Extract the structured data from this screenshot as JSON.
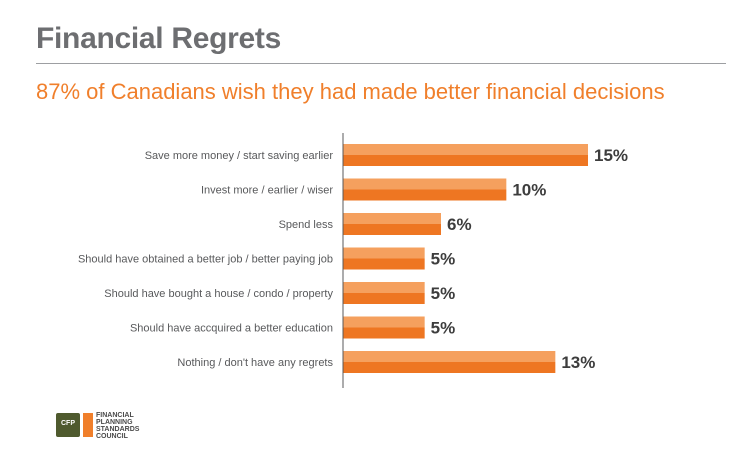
{
  "header": {
    "title": "Financial Regrets",
    "subtitle": "87% of Canadians wish they had made better financial decisions"
  },
  "footer": {
    "logo_lines": [
      "FINANCIAL",
      "PLANNING",
      "STANDARDS",
      "COUNCIL"
    ],
    "logo_mark_text": "CFP"
  },
  "colors": {
    "bar_light": "#f5a05e",
    "bar_dark": "#ee7622",
    "title_gray": "#6d6e71",
    "subtitle_orange": "#f07f2b"
  },
  "chart_data": {
    "type": "bar",
    "orientation": "horizontal",
    "categories": [
      "Save more money / start saving earlier",
      "Invest more / earlier / wiser",
      "Spend less",
      "Should have obtained a better job / better paying job",
      "Should have bought a house / condo / property",
      "Should have accquired a better education",
      "Nothing / don't have any regrets"
    ],
    "values": [
      15,
      10,
      6,
      5,
      5,
      5,
      13
    ],
    "value_labels": [
      "15%",
      "10%",
      "6%",
      "5%",
      "5%",
      "5%",
      "13%"
    ],
    "unit": "%",
    "xlim": [
      0,
      16
    ],
    "grid": false,
    "legend": "none"
  }
}
